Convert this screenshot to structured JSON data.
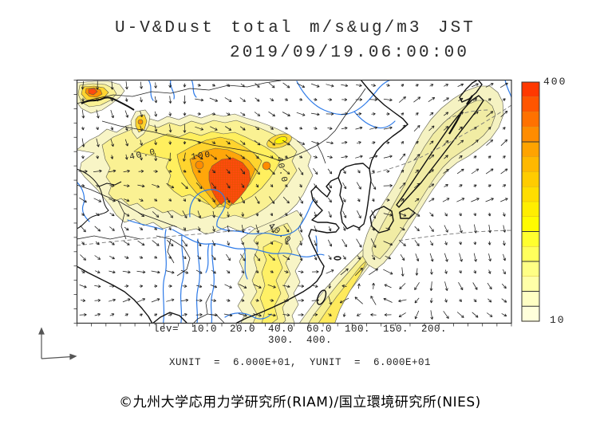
{
  "title": {
    "line1": "U-V&Dust total m/s&ug/m3 JST",
    "line2": "2019/09/19.06:00:00"
  },
  "map": {
    "contour_labels": [
      "40.0",
      "100",
      "40.0",
      "40.0"
    ],
    "lev_line1": "lev=  10.0  20.0  40.0  60.0  100.  150.  200.",
    "lev_line2": "300.  400.",
    "unit_line": "XUNIT  =  6.000E+01,  YUNIT  =  6.000E+01"
  },
  "colorbar": {
    "top_label": "400",
    "bottom_label": "10",
    "colors": [
      "#FF3800",
      "#FF5500",
      "#FF7100",
      "#FF8C00",
      "#FFA300",
      "#FFB800",
      "#FFCC00",
      "#FFDD00",
      "#FFEE00",
      "#FFFB00",
      "#FFFF2E",
      "#FFFF5C",
      "#FFFF85",
      "#FFFFA8",
      "#FFFFC4",
      "#FFFFDB"
    ]
  },
  "footer": {
    "credit": "©九州大学応用力学研究所(RIAM)/国立環境研究所(NIES)"
  },
  "chart_data": {
    "type": "heatmap",
    "title": "U-V&Dust total m/s&ug/m3 JST",
    "timestamp": "2019/09/19.06:00:00",
    "variables": {
      "shading": "Dust total concentration",
      "vectors": "U-V wind"
    },
    "units": {
      "wind": "m/s",
      "dust": "ug/m3",
      "time_zone": "JST"
    },
    "contour_levels": [
      10.0,
      20.0,
      40.0,
      60.0,
      100,
      150,
      200,
      300,
      400
    ],
    "colorbar_range": [
      10,
      400
    ],
    "vector_scale": {
      "xunit": 60.0,
      "yunit": 60.0
    },
    "labeled_contours_on_map": [
      "40.0",
      "100",
      "40.0",
      "40.0"
    ],
    "legend_position": "right",
    "grid": "off",
    "notable_features": "peak dust core >400 ug/m3 over northern China; yellow plume across Mongolia/Gobi; pale band along Sea of Japan and over western Japan; cyclonic wind vortex southeast of Japan"
  }
}
